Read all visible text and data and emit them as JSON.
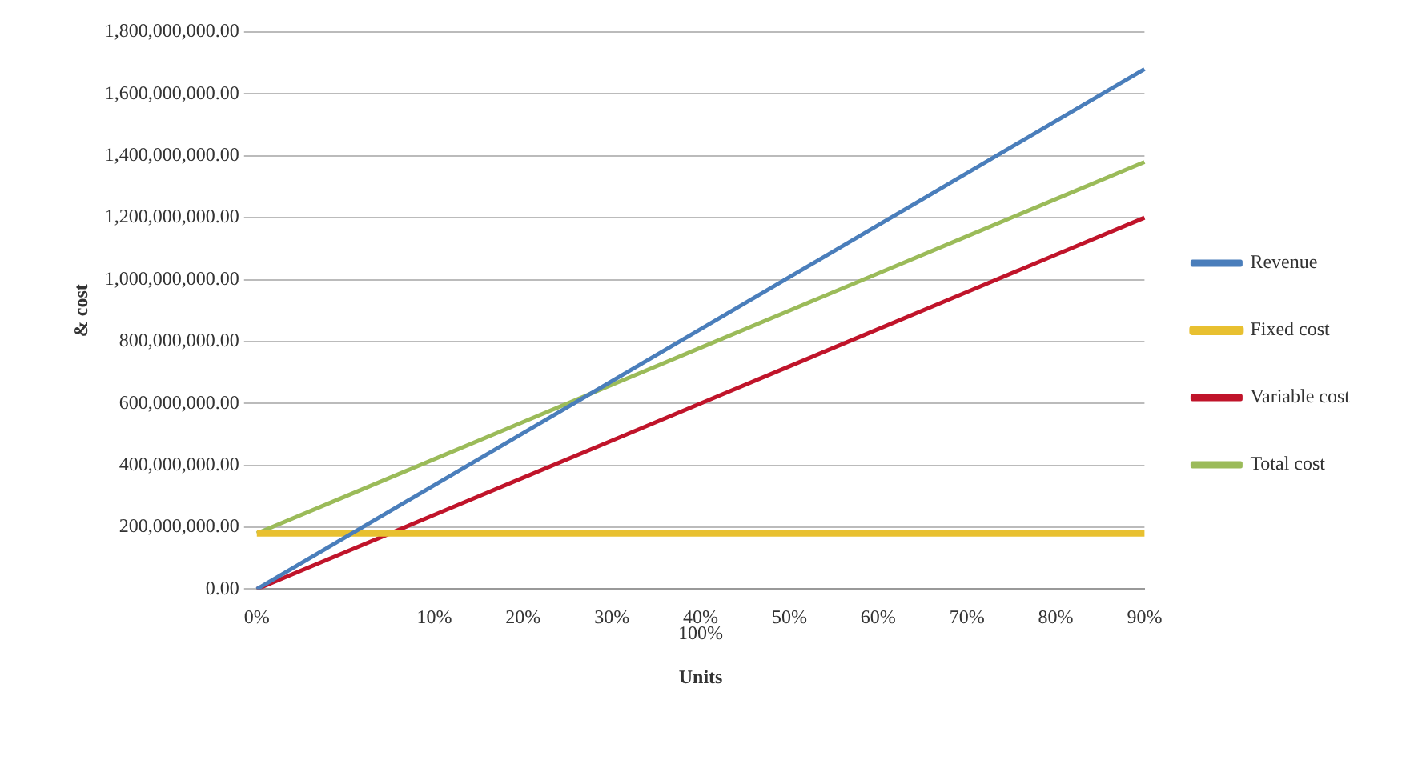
{
  "chart_data": {
    "type": "line",
    "ylabel": "& cost",
    "xlabel": "Units",
    "categories": [
      "0%",
      null,
      "10%",
      "20%",
      "30%",
      "40%",
      "50%",
      "60%",
      "70%",
      "80%",
      "90%"
    ],
    "series": [
      {
        "name": "Revenue",
        "color": "#4a7ebb",
        "values": [
          0,
          168000000,
          336000000,
          504000000,
          672000000,
          840000000,
          1008000000,
          1176000000,
          1344000000,
          1512000000,
          1680000000
        ]
      },
      {
        "name": "Fixed cost",
        "color": "#e8c030",
        "values": [
          180000000,
          180000000,
          180000000,
          180000000,
          180000000,
          180000000,
          180000000,
          180000000,
          180000000,
          180000000,
          180000000
        ]
      },
      {
        "name": "Variable cost",
        "color": "#c0142a",
        "values": [
          0,
          120000000,
          240000000,
          360000000,
          480000000,
          600000000,
          720000000,
          840000000,
          960000000,
          1080000000,
          1200000000
        ]
      },
      {
        "name": "Total cost",
        "color": "#9bbb59",
        "values": [
          180000000,
          300000000,
          420000000,
          540000000,
          660000000,
          780000000,
          900000000,
          1020000000,
          1140000000,
          1260000000,
          1380000000
        ]
      }
    ],
    "ylim": [
      0,
      1800000000
    ],
    "yticks": [
      {
        "value": 0,
        "label": "0.00"
      },
      {
        "value": 200000000,
        "label": "200,000,000.00"
      },
      {
        "value": 400000000,
        "label": "400,000,000.00"
      },
      {
        "value": 600000000,
        "label": "600,000,000.00"
      },
      {
        "value": 800000000,
        "label": "800,000,000.00"
      },
      {
        "value": 1000000000,
        "label": "1,000,000,000.00"
      },
      {
        "value": 1200000000,
        "label": "1,200,000,000.00"
      },
      {
        "value": 1400000000,
        "label": "1,400,000,000.00"
      },
      {
        "value": 1600000000,
        "label": "1,600,000,000.00"
      },
      {
        "value": 1800000000,
        "label": "1,800,000,000.00"
      }
    ],
    "annotations": [
      "100%"
    ],
    "grid": "y",
    "legend": "right",
    "marker": "none",
    "line_style": "solid"
  }
}
